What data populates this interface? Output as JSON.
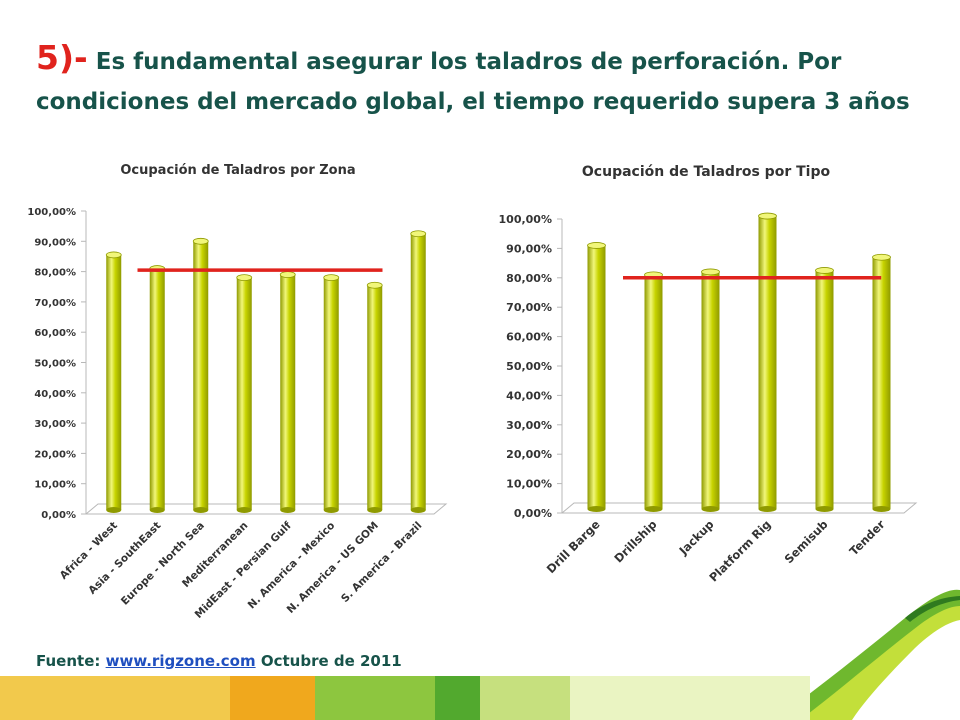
{
  "slide": {
    "title_number": "5)-",
    "title_text": "Es fundamental asegurar los taladros de perforación. Por condiciones del mercado global, el tiempo requerido supera 3 años",
    "source_label": "Fuente:",
    "source_link": "www.rigzone.com",
    "source_suffix": "Octubre de 2011"
  },
  "colors": {
    "title": "#17534a",
    "title_number": "#e0231d",
    "bar": "#c8d400",
    "bar_dark": "#8f9a00",
    "bar_light": "#f1f67a",
    "reference_line": "#e0231d",
    "link": "#1f4fbf",
    "band": [
      "#f2c94c",
      "#f0a81d",
      "#8dc63f",
      "#52a92e",
      "#c6e07e",
      "#eaf4c2"
    ]
  },
  "decor": {
    "corner": "green-curl-graphic"
  },
  "chart_data": [
    {
      "type": "bar",
      "title": "Ocupación de Taladros por Zona",
      "categories": [
        "Africa - West",
        "Asia - SouthEast",
        "Europe - North Sea",
        "Mediterranean",
        "MidEast - Persian Gulf",
        "N. America - Mexico",
        "N. America - US GOM",
        "S. America - Brazil"
      ],
      "values": [
        85.5,
        81,
        90,
        78,
        79,
        78,
        75.5,
        92.5
      ],
      "reference_line": 80.5,
      "ylim": [
        0,
        100
      ],
      "yticks": [
        "0,00%",
        "10,00%",
        "20,00%",
        "30,00%",
        "40,00%",
        "50,00%",
        "60,00%",
        "70,00%",
        "80,00%",
        "90,00%",
        "100,00%"
      ],
      "grid": false,
      "legend": "none"
    },
    {
      "type": "bar",
      "title": "Ocupación de Taladros por Tipo",
      "categories": [
        "Drill Barge",
        "Drillship",
        "Jackup",
        "Platform Rig",
        "Semisub",
        "Tender"
      ],
      "values": [
        91,
        81,
        82,
        101,
        82.5,
        87
      ],
      "reference_line": 80,
      "ylim": [
        0,
        100
      ],
      "yticks": [
        "0,00%",
        "10,00%",
        "20,00%",
        "30,00%",
        "40,00%",
        "50,00%",
        "60,00%",
        "70,00%",
        "80,00%",
        "90,00%",
        "100,00%"
      ],
      "grid": false,
      "legend": "none"
    }
  ]
}
